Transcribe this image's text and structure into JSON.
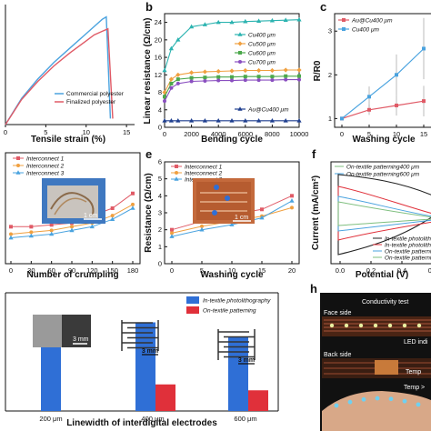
{
  "panels": {
    "a": {
      "letter": "",
      "xlabel": "Tensile strain (%)",
      "legend": [
        "Commercial polyester",
        "Finalized polyester"
      ],
      "xticks": [
        "0",
        "5",
        "10",
        "15"
      ],
      "colors": [
        "#4aa3df",
        "#e05a66"
      ]
    },
    "b": {
      "letter": "b",
      "xlabel": "Bending cycle",
      "ylabel": "Linear resistance (Ω/cm)",
      "xticks": [
        "0",
        "2000",
        "4000",
        "6000",
        "8000",
        "10000"
      ],
      "yticks": [
        "0",
        "4",
        "8",
        "12",
        "16",
        "20",
        "24"
      ],
      "legend": [
        "Cu400 μm",
        "Cu500 μm",
        "Cu600 μm",
        "Cu700 μm",
        "Au@Cu400 μm"
      ]
    },
    "c": {
      "letter": "c",
      "xlabel": "Washing cycle",
      "ylabel": "R/R0",
      "xticks": [
        "0",
        "5",
        "10",
        "15"
      ],
      "yticks": [
        "1",
        "2",
        "3"
      ],
      "legend": [
        "Au@Cu400 μm",
        "Cu400 μm"
      ]
    },
    "d": {
      "letter": "",
      "xlabel": "Number of crumpling",
      "xticks": [
        "0",
        "30",
        "60",
        "90",
        "120",
        "150",
        "180"
      ],
      "legend": [
        "Interconnect 1",
        "Interconnect 2",
        "Interconnect 3"
      ],
      "scale": "1 cm"
    },
    "e": {
      "letter": "e",
      "xlabel": "Washing cycle",
      "ylabel": "Resistance (Ω/cm)",
      "xticks": [
        "0",
        "5",
        "10",
        "15",
        "20"
      ],
      "yticks": [
        "0",
        "1",
        "2",
        "3",
        "4",
        "5",
        "6"
      ],
      "legend": [
        "Interconnect 1",
        "Interconnect 2",
        "Interconnect 3"
      ],
      "scale": "1 cm"
    },
    "f": {
      "letter": "f",
      "xlabel": "Potential (V)",
      "ylabel": "Current (mA/cm²)",
      "xticks": [
        "0.0",
        "0.2",
        "0.4",
        "0.6"
      ],
      "legend_top": [
        "On-textile patterning400 μm",
        "On-textile patterning600 μm"
      ],
      "legend_bottom": [
        "In-textile photolithogr",
        "In-textile photolithogr",
        "On-textile patterning",
        "On-textile patterning"
      ]
    },
    "g": {
      "xlabel": "Linewidth of interdigital electrodes",
      "legend": [
        "In-textile photolithography",
        "On-textile patterning"
      ],
      "scale": "3 mm"
    },
    "h": {
      "letter": "h",
      "title": "Conductivity test",
      "face": "Face side",
      "back": "Back side",
      "led": "LED indi",
      "temp": "Temp",
      "temp2": "Temp >"
    }
  },
  "chart_data": [
    {
      "type": "line",
      "panel": "a",
      "xlabel": "Tensile strain (%)",
      "series": [
        {
          "name": "Commercial polyester",
          "x": [
            0,
            2,
            4,
            6,
            8,
            10,
            11,
            12,
            12.5,
            13
          ],
          "y": [
            0,
            22,
            38,
            52,
            64,
            76,
            82,
            88,
            90,
            5
          ]
        },
        {
          "name": "Finalized polyester",
          "x": [
            0,
            2,
            4,
            6,
            8,
            10,
            11,
            12,
            12.7,
            13.3
          ],
          "y": [
            0,
            21,
            36,
            49,
            60,
            70,
            75,
            78,
            80,
            5
          ]
        }
      ]
    },
    {
      "type": "line",
      "panel": "b",
      "xlabel": "Bending cycle",
      "ylabel": "Linear resistance (Ω/cm)",
      "ylim": [
        0,
        26
      ],
      "x": [
        0,
        500,
        1000,
        2000,
        3000,
        4000,
        5000,
        6000,
        7000,
        8000,
        9000,
        10000
      ],
      "series": [
        {
          "name": "Cu400 μm",
          "values": [
            13,
            18,
            20,
            23,
            23.5,
            24,
            24,
            24.2,
            24.3,
            24.4,
            24.5,
            24.6
          ]
        },
        {
          "name": "Cu500 μm",
          "values": [
            8,
            11,
            12,
            12.5,
            12.7,
            12.8,
            12.9,
            13,
            13,
            13,
            13.1,
            13.1
          ]
        },
        {
          "name": "Cu600 μm",
          "values": [
            7,
            10,
            11,
            11.3,
            11.4,
            11.5,
            11.5,
            11.6,
            11.6,
            11.6,
            11.7,
            11.7
          ]
        },
        {
          "name": "Cu700 μm",
          "values": [
            6,
            9,
            10,
            10.5,
            10.6,
            10.7,
            10.7,
            10.8,
            10.8,
            10.8,
            10.9,
            10.9
          ]
        },
        {
          "name": "Au@Cu400 μm",
          "values": [
            1.5,
            1.5,
            1.5,
            1.5,
            1.5,
            1.5,
            1.5,
            1.5,
            1.5,
            1.5,
            1.5,
            1.5
          ]
        }
      ]
    },
    {
      "type": "line",
      "panel": "c",
      "xlabel": "Washing cycle",
      "ylabel": "R/R0",
      "ylim": [
        0.8,
        3.4
      ],
      "x": [
        0,
        5,
        10,
        15
      ],
      "series": [
        {
          "name": "Au@Cu400 μm",
          "values": [
            1.0,
            1.2,
            1.3,
            1.4
          ]
        },
        {
          "name": "Cu400 μm",
          "values": [
            1.0,
            1.5,
            2.0,
            2.6
          ]
        }
      ]
    },
    {
      "type": "line",
      "panel": "d",
      "xlabel": "Number of crumpling",
      "x": [
        0,
        30,
        60,
        90,
        120,
        150,
        180
      ],
      "series": [
        {
          "name": "Interconnect 1",
          "values": [
            3.0,
            3.0,
            3.05,
            3.1,
            3.3,
            3.5,
            3.9
          ]
        },
        {
          "name": "Interconnect 2",
          "values": [
            2.8,
            2.85,
            2.9,
            3.0,
            3.1,
            3.3,
            3.6
          ]
        },
        {
          "name": "Interconnect 3",
          "values": [
            2.7,
            2.75,
            2.8,
            2.9,
            3.0,
            3.2,
            3.5
          ]
        }
      ]
    },
    {
      "type": "line",
      "panel": "e",
      "xlabel": "Washing cycle",
      "ylabel": "Resistance (Ω/cm)",
      "ylim": [
        0,
        6
      ],
      "x": [
        0,
        5,
        10,
        15,
        20
      ],
      "series": [
        {
          "name": "Interconnect 1",
          "values": [
            2.0,
            2.5,
            2.9,
            3.2,
            4.0
          ]
        },
        {
          "name": "Interconnect 2",
          "values": [
            1.8,
            2.2,
            2.5,
            2.8,
            3.3
          ]
        },
        {
          "name": "Interconnect 3",
          "values": [
            1.6,
            2.0,
            2.3,
            2.7,
            3.7
          ]
        }
      ]
    },
    {
      "type": "bar",
      "panel": "g",
      "xlabel": "Linewidth of interdigital electrodes",
      "categories": [
        "200 μm",
        "400 μm",
        "600 μm"
      ],
      "series": [
        {
          "name": "In-textile photolithography",
          "values": [
            6.3,
            6.0,
            5.0
          ]
        },
        {
          "name": "On-textile patterning",
          "values": [
            0,
            1.8,
            1.4
          ]
        }
      ],
      "ylim": [
        0,
        8
      ]
    }
  ],
  "colors": {
    "blue": "#2f6fd6",
    "red": "#e0303a",
    "lightblue": "#4aa3df",
    "pink": "#e05a66",
    "teal": "#2bb3b0",
    "green": "#4ca84c",
    "orange": "#f0a040",
    "purple": "#8a4fc0",
    "navy": "#1f3f8f"
  }
}
